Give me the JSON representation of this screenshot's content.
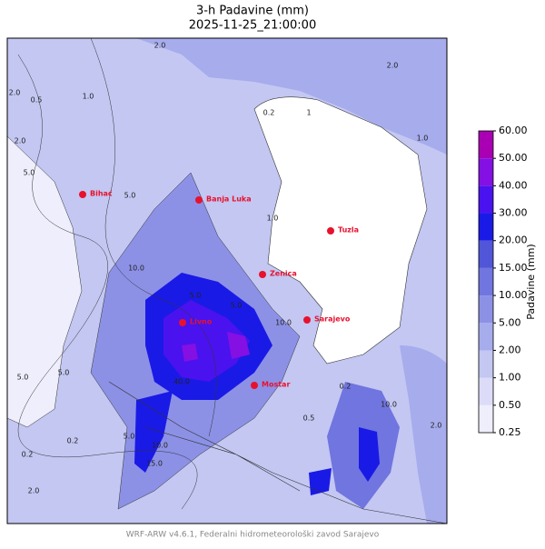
{
  "header": {
    "title": "3-h Padavine (mm)",
    "subtitle": "2025-11-25_21:00:00"
  },
  "map": {
    "cities": [
      "Bihać",
      "Banja Luka",
      "Tuzla",
      "Zenica",
      "Sarajevo",
      "Livno",
      "Mostar"
    ],
    "contour_labels": [
      "2.0",
      "0.5",
      "2.0",
      "5.0",
      "2.0",
      "2.0",
      "1.0",
      "5.0",
      "10.0",
      "5.0",
      "1.0",
      "0.2",
      "1",
      "2.0",
      "1.0",
      "5.0",
      "10.0",
      "5.0",
      "10.0",
      "15.0",
      "0.2",
      "0.2",
      "5.0",
      "10.0",
      "5.0",
      "40.0",
      "0.5",
      "2.0",
      "0.2"
    ]
  },
  "colorbar": {
    "label": "Padavine (mm)",
    "ticks": [
      {
        "value": 0.25,
        "label": "0.25"
      },
      {
        "value": 0.5,
        "label": "0.50"
      },
      {
        "value": 1,
        "label": "1.00"
      },
      {
        "value": 2,
        "label": "2.00"
      },
      {
        "value": 5,
        "label": "5.00"
      },
      {
        "value": 10,
        "label": "10.00"
      },
      {
        "value": 15,
        "label": "15.00"
      },
      {
        "value": 20,
        "label": "20.00"
      },
      {
        "value": 30,
        "label": "30.00"
      },
      {
        "value": 40,
        "label": "40.00"
      },
      {
        "value": 50,
        "label": "50.00"
      },
      {
        "value": 60,
        "label": "60.00"
      }
    ],
    "colors": [
      "#eeeefc",
      "#dcdcf8",
      "#c3c7f2",
      "#a6acec",
      "#8c91e6",
      "#7075df",
      "#5156d9",
      "#1a1ae6",
      "#4a12ee",
      "#8410e4",
      "#aa00b4"
    ]
  },
  "footer": "WRF-ARW v4.6.1, Federalni hidrometeorološki zavod Sarajevo"
}
